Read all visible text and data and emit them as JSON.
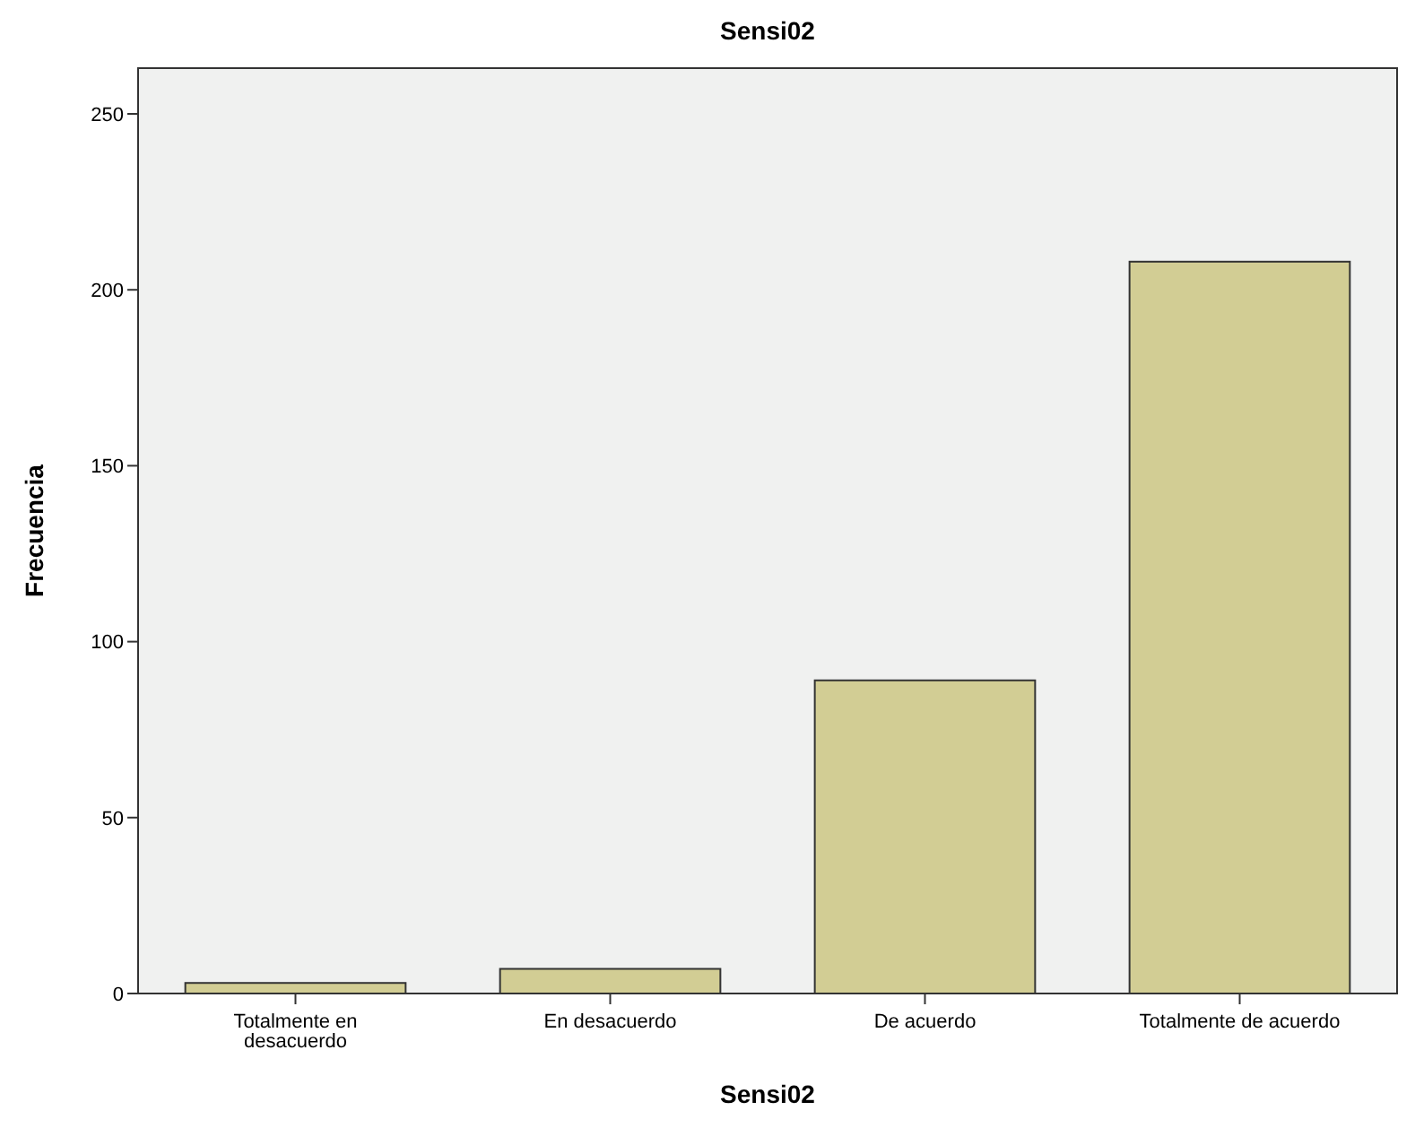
{
  "chart_data": {
    "type": "bar",
    "title": "Sensi02",
    "xlabel": "Sensi02",
    "ylabel": "Frecuencia",
    "categories": [
      "Totalmente en\ndesacuerdo",
      "En desacuerdo",
      "De acuerdo",
      "Totalmente de acuerdo"
    ],
    "values": [
      3,
      7,
      89,
      208
    ],
    "color": "#d2cd94",
    "ylim": [
      0,
      263
    ],
    "yticks": [
      0,
      50,
      100,
      150,
      200,
      250
    ],
    "grid": false
  }
}
